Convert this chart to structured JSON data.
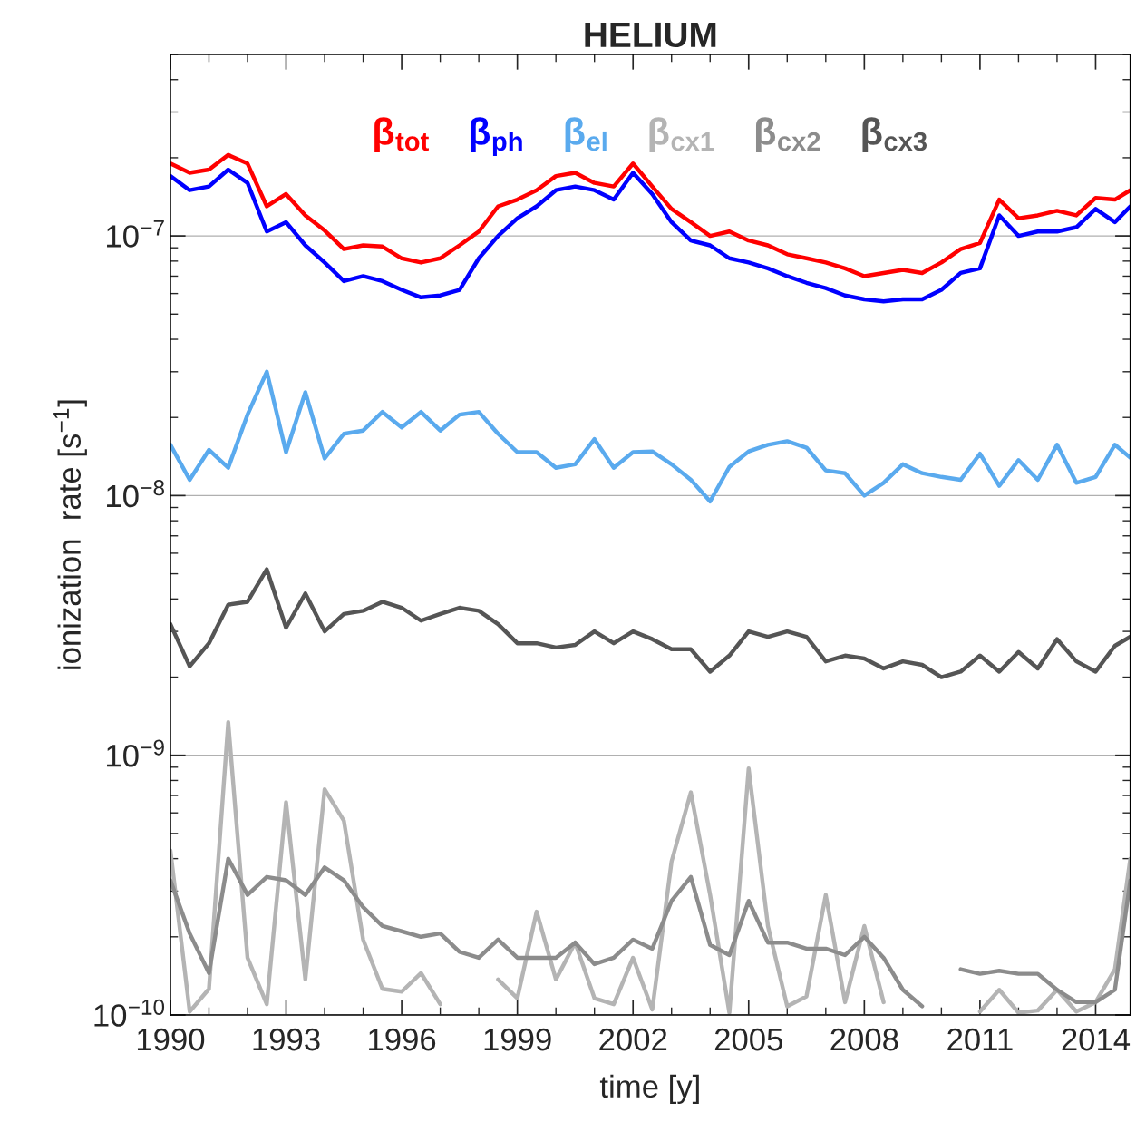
{
  "chart_data": {
    "type": "line",
    "title": "HELIUM",
    "xlabel": "time [y]",
    "ylabel": "ionization  rate [s$^{−1}$]",
    "x": [
      1990.0,
      1990.5,
      1991.0,
      1991.5,
      1992.0,
      1992.5,
      1993.0,
      1993.5,
      1994.0,
      1994.5,
      1995.0,
      1995.5,
      1996.0,
      1996.5,
      1997.0,
      1997.5,
      1998.0,
      1998.5,
      1999.0,
      1999.5,
      2000.0,
      2000.5,
      2001.0,
      2001.5,
      2002.0,
      2002.5,
      2003.0,
      2003.5,
      2004.0,
      2004.5,
      2005.0,
      2005.5,
      2006.0,
      2006.5,
      2007.0,
      2007.5,
      2008.0,
      2008.5,
      2009.0,
      2009.5,
      2010.0,
      2010.5,
      2011.0,
      2011.5,
      2012.0,
      2012.5,
      2013.0,
      2013.5,
      2014.0,
      2014.5,
      2014.9
    ],
    "series": [
      {
        "name": "β$_{tot}$",
        "color": "#ff0000",
        "values": [
          1.9e-07,
          1.75e-07,
          1.8e-07,
          2.05e-07,
          1.9e-07,
          1.3e-07,
          1.45e-07,
          1.2e-07,
          1.05e-07,
          8.9e-08,
          9.2e-08,
          9.1e-08,
          8.2e-08,
          7.9e-08,
          8.2e-08,
          9.2e-08,
          1.04e-07,
          1.3e-07,
          1.38e-07,
          1.5e-07,
          1.7e-07,
          1.75e-07,
          1.6e-07,
          1.55e-07,
          1.9e-07,
          1.55e-07,
          1.27e-07,
          1.13e-07,
          1e-07,
          1.04e-07,
          9.6e-08,
          9.2e-08,
          8.5e-08,
          8.2e-08,
          7.9e-08,
          7.5e-08,
          7e-08,
          7.2e-08,
          7.4e-08,
          7.2e-08,
          7.9e-08,
          8.9e-08,
          9.4e-08,
          1.38e-07,
          1.17e-07,
          1.2e-07,
          1.25e-07,
          1.2e-07,
          1.4e-07,
          1.38e-07,
          1.5e-07
        ]
      },
      {
        "name": "β$_{ph}$",
        "color": "#0000ff",
        "values": [
          1.7e-07,
          1.5e-07,
          1.55e-07,
          1.8e-07,
          1.6e-07,
          1.04e-07,
          1.13e-07,
          9.2e-08,
          7.9e-08,
          6.7e-08,
          7e-08,
          6.7e-08,
          6.2e-08,
          5.8e-08,
          5.9e-08,
          6.2e-08,
          8.2e-08,
          1e-07,
          1.17e-07,
          1.3e-07,
          1.5e-07,
          1.55e-07,
          1.5e-07,
          1.38e-07,
          1.75e-07,
          1.45e-07,
          1.13e-07,
          9.6e-08,
          9.2e-08,
          8.2e-08,
          7.9e-08,
          7.5e-08,
          7e-08,
          6.6e-08,
          6.3e-08,
          5.9e-08,
          5.7e-08,
          5.6e-08,
          5.7e-08,
          5.7e-08,
          6.2e-08,
          7.2e-08,
          7.5e-08,
          1.2e-07,
          1e-07,
          1.04e-07,
          1.04e-07,
          1.08e-07,
          1.27e-07,
          1.13e-07,
          1.3e-07
        ]
      },
      {
        "name": "β$_{el}$",
        "color": "#5aaaee",
        "values": [
          1.57e-08,
          1.15e-08,
          1.5e-08,
          1.28e-08,
          2.05e-08,
          3e-08,
          1.47e-08,
          2.5e-08,
          1.39e-08,
          1.73e-08,
          1.78e-08,
          2.1e-08,
          1.83e-08,
          2.1e-08,
          1.78e-08,
          2.05e-08,
          2.1e-08,
          1.73e-08,
          1.47e-08,
          1.47e-08,
          1.28e-08,
          1.32e-08,
          1.65e-08,
          1.28e-08,
          1.47e-08,
          1.48e-08,
          1.32e-08,
          1.15e-08,
          9.5e-09,
          1.29e-08,
          1.48e-08,
          1.57e-08,
          1.62e-08,
          1.53e-08,
          1.25e-08,
          1.22e-08,
          1e-08,
          1.12e-08,
          1.32e-08,
          1.22e-08,
          1.18e-08,
          1.15e-08,
          1.45e-08,
          1.09e-08,
          1.37e-08,
          1.15e-08,
          1.57e-08,
          1.12e-08,
          1.18e-08,
          1.57e-08,
          1.4e-08
        ]
      },
      {
        "name": "β$_{cx1}$",
        "color": "#b4b4b4",
        "values": [
          4.3e-10,
          1.03e-10,
          1.26e-10,
          1.34e-09,
          1.66e-10,
          1.1e-10,
          6.6e-10,
          1.37e-10,
          7.4e-10,
          5.6e-10,
          1.95e-10,
          1.26e-10,
          1.23e-10,
          1.45e-10,
          1.1e-10,
          null,
          null,
          1.37e-10,
          1.16e-10,
          2.5e-10,
          1.37e-10,
          1.9e-10,
          1.16e-10,
          1.1e-10,
          1.66e-10,
          1.05e-10,
          3.9e-10,
          7.2e-10,
          2.9e-10,
          1.02e-10,
          8.9e-10,
          2.2e-10,
          1.08e-10,
          1.18e-10,
          2.9e-10,
          1.12e-10,
          2.2e-10,
          1.12e-10,
          null,
          null,
          null,
          null,
          1.03e-10,
          1.25e-10,
          1.02e-10,
          1.04e-10,
          1.25e-10,
          1.03e-10,
          1.12e-10,
          1.5e-10,
          4e-10
        ]
      },
      {
        "name": "β$_{cx2}$",
        "color": "#8c8c8c",
        "values": [
          3.3e-10,
          2.06e-10,
          1.45e-10,
          4e-10,
          2.9e-10,
          3.4e-10,
          3.3e-10,
          2.9e-10,
          3.7e-10,
          3.3e-10,
          2.6e-10,
          2.2e-10,
          2.1e-10,
          2e-10,
          2.06e-10,
          1.75e-10,
          1.66e-10,
          1.95e-10,
          1.66e-10,
          1.66e-10,
          1.66e-10,
          1.9e-10,
          1.57e-10,
          1.66e-10,
          1.95e-10,
          1.8e-10,
          2.75e-10,
          3.4e-10,
          1.86e-10,
          1.7e-10,
          2.75e-10,
          1.9e-10,
          1.9e-10,
          1.8e-10,
          1.8e-10,
          1.7e-10,
          2e-10,
          1.66e-10,
          1.25e-10,
          1.08e-10,
          null,
          1.5e-10,
          1.44e-10,
          1.48e-10,
          1.44e-10,
          1.44e-10,
          1.25e-10,
          1.12e-10,
          1.12e-10,
          1.25e-10,
          3.3e-10
        ]
      },
      {
        "name": "β$_{cx3}$",
        "color": "#555555",
        "values": [
          3.2e-09,
          2.2e-09,
          2.7e-09,
          3.8e-09,
          3.9e-09,
          5.2e-09,
          3.1e-09,
          4.2e-09,
          3e-09,
          3.5e-09,
          3.6e-09,
          3.9e-09,
          3.7e-09,
          3.3e-09,
          3.5e-09,
          3.7e-09,
          3.6e-09,
          3.2e-09,
          2.7e-09,
          2.7e-09,
          2.6e-09,
          2.66e-09,
          3e-09,
          2.7e-09,
          3e-09,
          2.8e-09,
          2.56e-09,
          2.56e-09,
          2.1e-09,
          2.42e-09,
          3e-09,
          2.86e-09,
          3e-09,
          2.86e-09,
          2.3e-09,
          2.42e-09,
          2.36e-09,
          2.16e-09,
          2.3e-09,
          2.23e-09,
          2e-09,
          2.1e-09,
          2.42e-09,
          2.1e-09,
          2.5e-09,
          2.16e-09,
          2.8e-09,
          2.3e-09,
          2.1e-09,
          2.64e-09,
          2.86e-09
        ]
      }
    ],
    "log": "y",
    "xlim": [
      1990,
      2014.9
    ],
    "ylim": [
      1e-10,
      5e-07
    ],
    "xticks": [
      1990,
      1993,
      1996,
      1999,
      2002,
      2005,
      2008,
      2011,
      2014
    ],
    "yticks": [
      {
        "value": 1e-10,
        "label": "10$^{−10}$"
      },
      {
        "value": 1e-09,
        "label": "10$^{−9}$"
      },
      {
        "value": 1e-08,
        "label": "10$^{−8}$"
      },
      {
        "value": 1e-07,
        "label": "10$^{−7}$"
      }
    ],
    "grid": "y",
    "legend": "top",
    "line_style": "solid",
    "marker": "none"
  }
}
